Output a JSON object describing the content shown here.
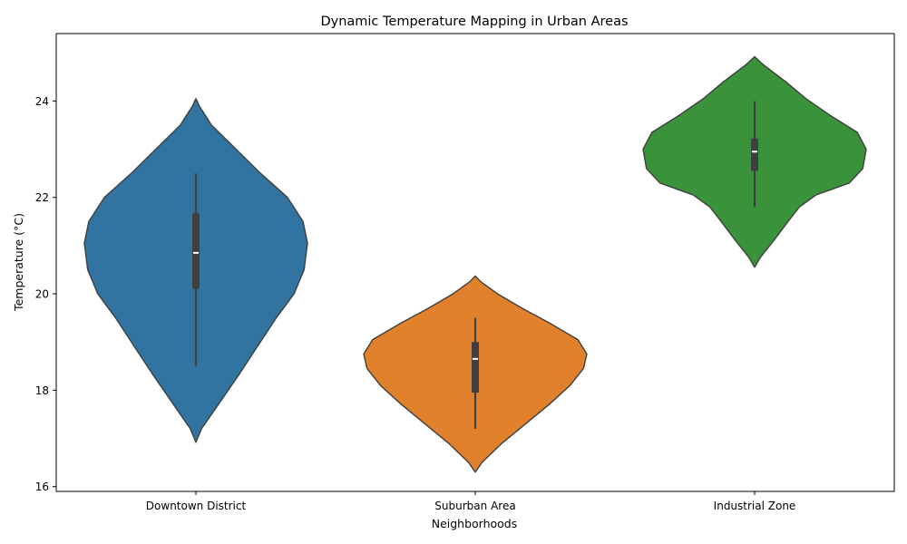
{
  "chart_data": {
    "type": "violin",
    "title": "Dynamic Temperature Mapping in Urban Areas",
    "xlabel": "Neighborhoods",
    "ylabel": "Temperature (°C)",
    "ylim": [
      15.9,
      25.4
    ],
    "yticks": [
      16,
      18,
      20,
      22,
      24
    ],
    "grid": false,
    "categories": [
      "Downtown District",
      "Suburban Area",
      "Industrial Zone"
    ],
    "series": [
      {
        "category": "Downtown District",
        "color": "#3274a1",
        "min": 18.5,
        "q1": 20.1,
        "median": 20.85,
        "q3": 21.67,
        "max": 22.5,
        "kde_min": 16.92,
        "kde_max": 24.05,
        "density": [
          [
            16.92,
            0
          ],
          [
            17.2,
            0.05
          ],
          [
            17.7,
            0.2
          ],
          [
            18.3,
            0.38
          ],
          [
            18.9,
            0.55
          ],
          [
            19.5,
            0.72
          ],
          [
            20.0,
            0.88
          ],
          [
            20.5,
            0.97
          ],
          [
            21.05,
            1.0
          ],
          [
            21.5,
            0.96
          ],
          [
            22.0,
            0.82
          ],
          [
            22.5,
            0.58
          ],
          [
            23.0,
            0.36
          ],
          [
            23.5,
            0.14
          ],
          [
            23.9,
            0.03
          ],
          [
            24.05,
            0
          ]
        ]
      },
      {
        "category": "Suburban Area",
        "color": "#e1812c",
        "min": 17.2,
        "q1": 17.95,
        "median": 18.65,
        "q3": 19.0,
        "max": 19.5,
        "kde_min": 16.3,
        "kde_max": 20.37,
        "density": [
          [
            16.3,
            0
          ],
          [
            16.5,
            0.06
          ],
          [
            16.9,
            0.24
          ],
          [
            17.3,
            0.45
          ],
          [
            17.7,
            0.66
          ],
          [
            18.1,
            0.85
          ],
          [
            18.45,
            0.97
          ],
          [
            18.75,
            1.0
          ],
          [
            19.05,
            0.92
          ],
          [
            19.4,
            0.66
          ],
          [
            19.7,
            0.42
          ],
          [
            20.0,
            0.2
          ],
          [
            20.25,
            0.05
          ],
          [
            20.37,
            0
          ]
        ]
      },
      {
        "category": "Industrial Zone",
        "color": "#3a923a",
        "min": 21.8,
        "q1": 22.55,
        "median": 22.95,
        "q3": 23.22,
        "max": 24.0,
        "kde_min": 20.55,
        "kde_max": 24.92,
        "density": [
          [
            20.55,
            0
          ],
          [
            20.75,
            0.05
          ],
          [
            21.1,
            0.17
          ],
          [
            21.5,
            0.3
          ],
          [
            21.8,
            0.4
          ],
          [
            22.05,
            0.55
          ],
          [
            22.3,
            0.85
          ],
          [
            22.6,
            0.97
          ],
          [
            23.0,
            1.0
          ],
          [
            23.35,
            0.92
          ],
          [
            23.7,
            0.68
          ],
          [
            24.05,
            0.46
          ],
          [
            24.4,
            0.28
          ],
          [
            24.75,
            0.08
          ],
          [
            24.92,
            0
          ]
        ]
      }
    ]
  }
}
